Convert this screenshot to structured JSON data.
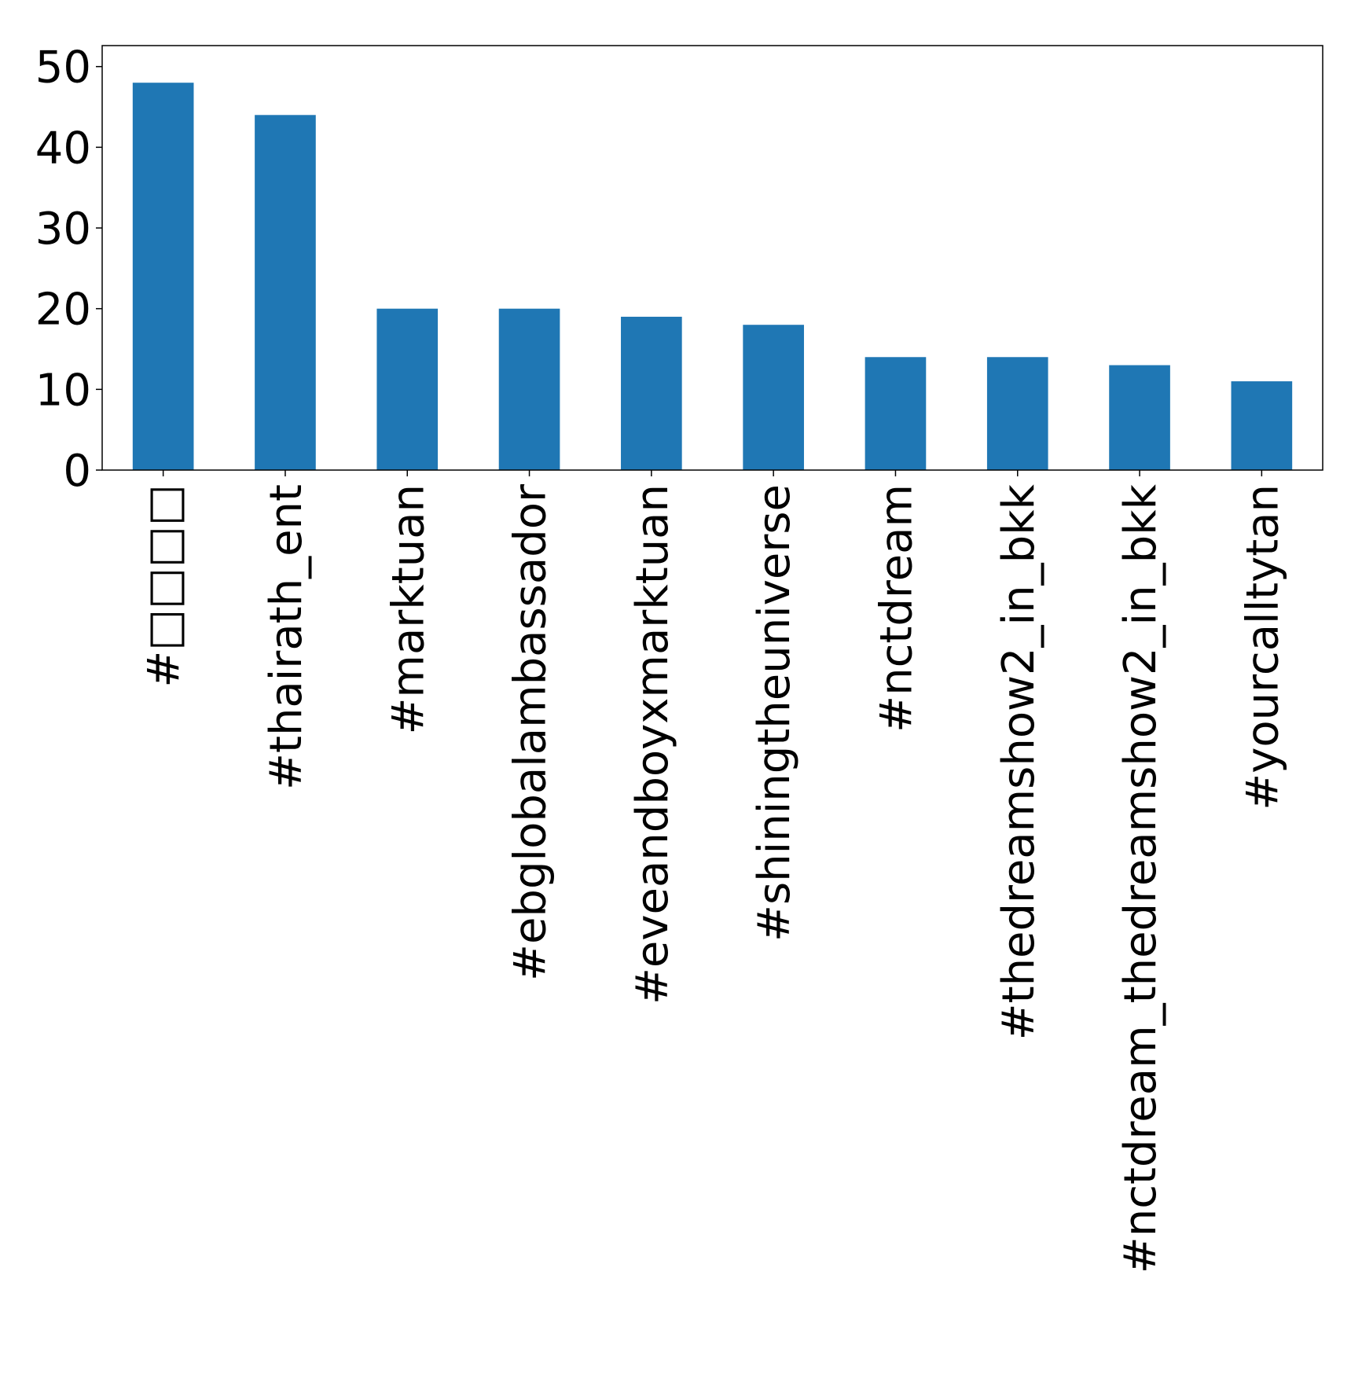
{
  "chart_data": {
    "type": "bar",
    "categories": [
      "#□□□□",
      "#thairath_ent",
      "#marktuan",
      "#ebglobalambassador",
      "#eveandboyxmarktuan",
      "#shiningtheuniverse",
      "#nctdream",
      "#thedreamshow2_in_bkk",
      "#nctdream_thedreamshow2_in_bkk",
      "#yourcalltytan"
    ],
    "values": [
      48,
      44,
      20,
      20,
      19,
      18,
      14,
      14,
      13,
      11
    ],
    "ylim": [
      0,
      50
    ],
    "yticks": [
      0,
      10,
      20,
      30,
      40,
      50
    ],
    "title": "",
    "xlabel": "",
    "ylabel": "",
    "bar_color": "#1f77b4",
    "grid": false,
    "legend": "none"
  }
}
